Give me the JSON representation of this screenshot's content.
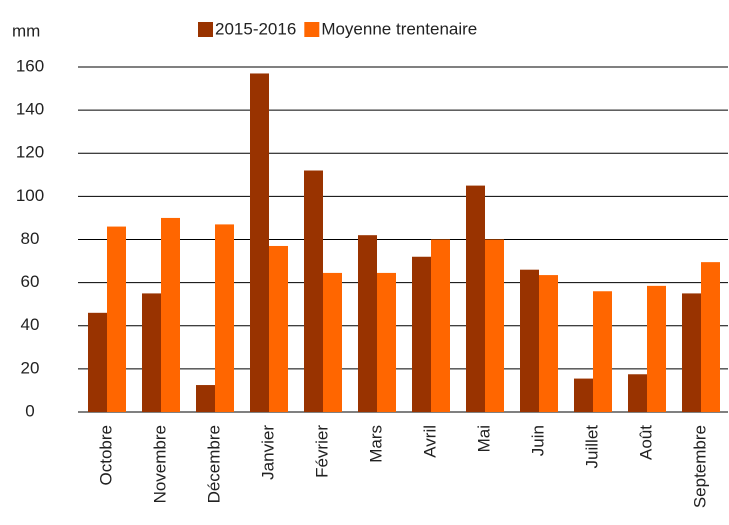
{
  "chart_data": {
    "type": "bar",
    "y_label": "mm",
    "categories": [
      "Octobre",
      "Novembre",
      "Décembre",
      "Janvier",
      "Février",
      "Mars",
      "Avril",
      "Mai",
      "Juin",
      "Juillet",
      "Août",
      "Septembre"
    ],
    "series": [
      {
        "name": "2015-2016",
        "color": "#993300",
        "values": [
          46,
          55,
          12.5,
          157,
          112,
          82,
          72,
          105,
          66,
          15.5,
          17.5,
          55
        ]
      },
      {
        "name": "Moyenne trentenaire",
        "color": "#ff6600",
        "values": [
          86,
          90,
          87,
          77,
          64.5,
          64.5,
          80,
          80,
          63.5,
          56,
          58.5,
          69.5
        ]
      }
    ],
    "ylim": [
      0,
      160
    ],
    "yticks": [
      0,
      20,
      40,
      60,
      80,
      100,
      120,
      140,
      160
    ],
    "grid": true,
    "legend": "top"
  }
}
